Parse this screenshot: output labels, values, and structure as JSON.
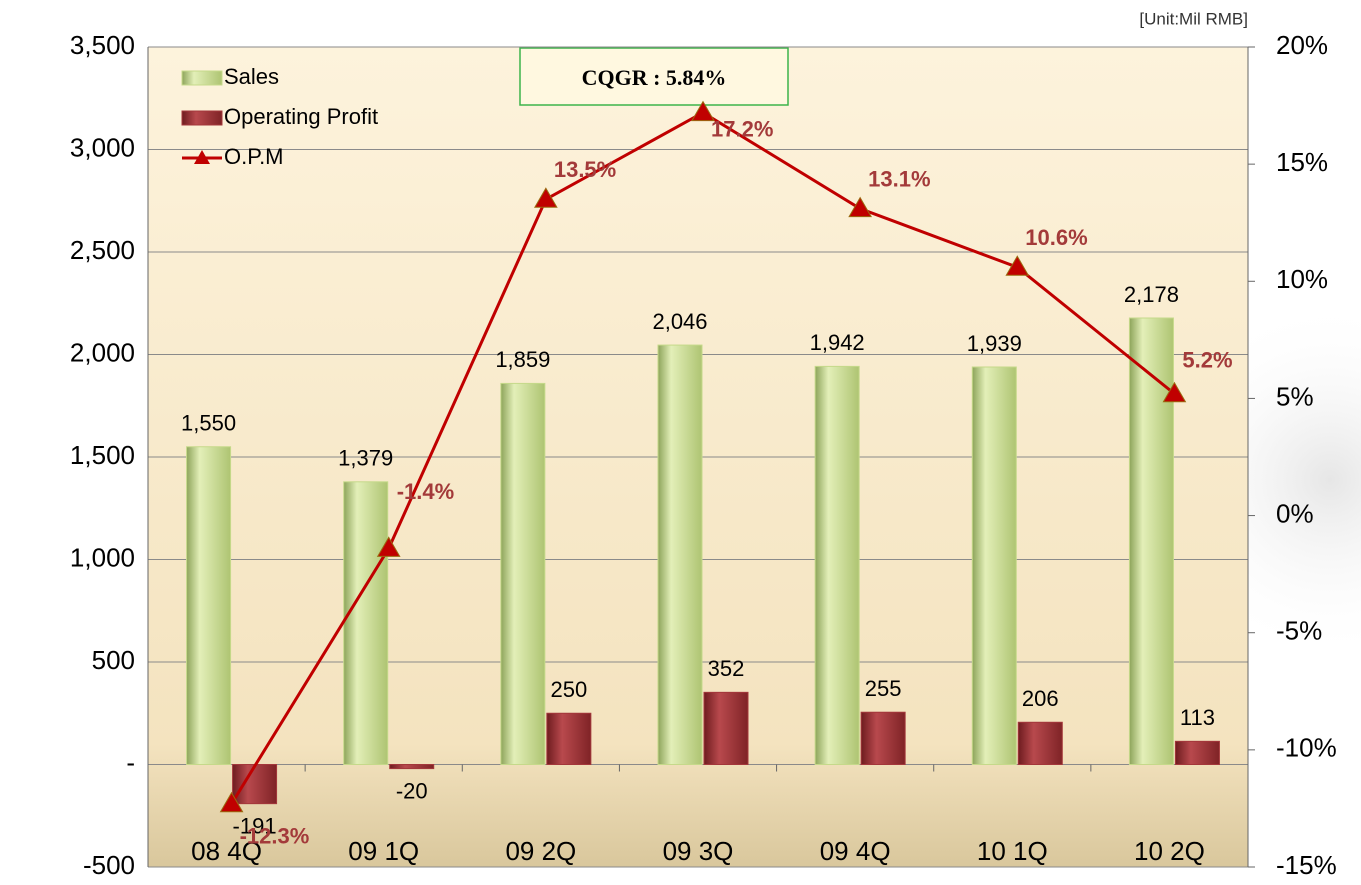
{
  "chart_data": {
    "type": "bar",
    "unit_note": "[Unit:Mil RMB]",
    "annotation": "CQGR : 5.84%",
    "categories": [
      "08 4Q",
      "09 1Q",
      "09 2Q",
      "09 3Q",
      "09 4Q",
      "10 1Q",
      "10 2Q"
    ],
    "series": [
      {
        "name": "Sales",
        "type": "bar",
        "color": "#c5d98a",
        "values": [
          1550,
          1379,
          1859,
          2046,
          1942,
          1939,
          2178
        ],
        "value_labels": [
          "1,550",
          "1,379",
          "1,859",
          "2,046",
          "1,942",
          "1,939",
          "2,178"
        ]
      },
      {
        "name": "Operating Profit",
        "type": "bar",
        "color": "#a3373b",
        "values": [
          -191,
          -20,
          250,
          352,
          255,
          206,
          113
        ]
      },
      {
        "name": "O.P.M",
        "type": "line",
        "axis": "y2",
        "color": "#c00000",
        "values": [
          -12.3,
          -1.4,
          13.5,
          17.2,
          13.1,
          10.6,
          5.2
        ],
        "value_labels": [
          "-12.3%",
          "-1.4%",
          "13.5%",
          "17.2%",
          "13.1%",
          "10.6%",
          "5.2%"
        ]
      }
    ],
    "ylim": [
      -500,
      3500
    ],
    "yticks": [
      -500,
      {
        "value": 0,
        "label": "-"
      },
      500,
      {
        "value": 1000,
        "label": "1,000"
      },
      {
        "value": 1500,
        "label": "1,500"
      },
      {
        "value": 2000,
        "label": "2,000"
      },
      {
        "value": 2500,
        "label": "2,500"
      },
      {
        "value": 3000,
        "label": "3,000"
      },
      {
        "value": 3500,
        "label": "3,500"
      }
    ],
    "y2lim": [
      -15,
      20
    ],
    "y2ticks": [
      {
        "value": -15,
        "label": "-15%"
      },
      {
        "value": -10,
        "label": "-10%"
      },
      {
        "value": -5,
        "label": "-5%"
      },
      {
        "value": 0,
        "label": "0%"
      },
      {
        "value": 5,
        "label": "5%"
      },
      {
        "value": 10,
        "label": "10%"
      },
      {
        "value": 15,
        "label": "15%"
      },
      {
        "value": 20,
        "label": "20%"
      }
    ],
    "grid": true
  }
}
